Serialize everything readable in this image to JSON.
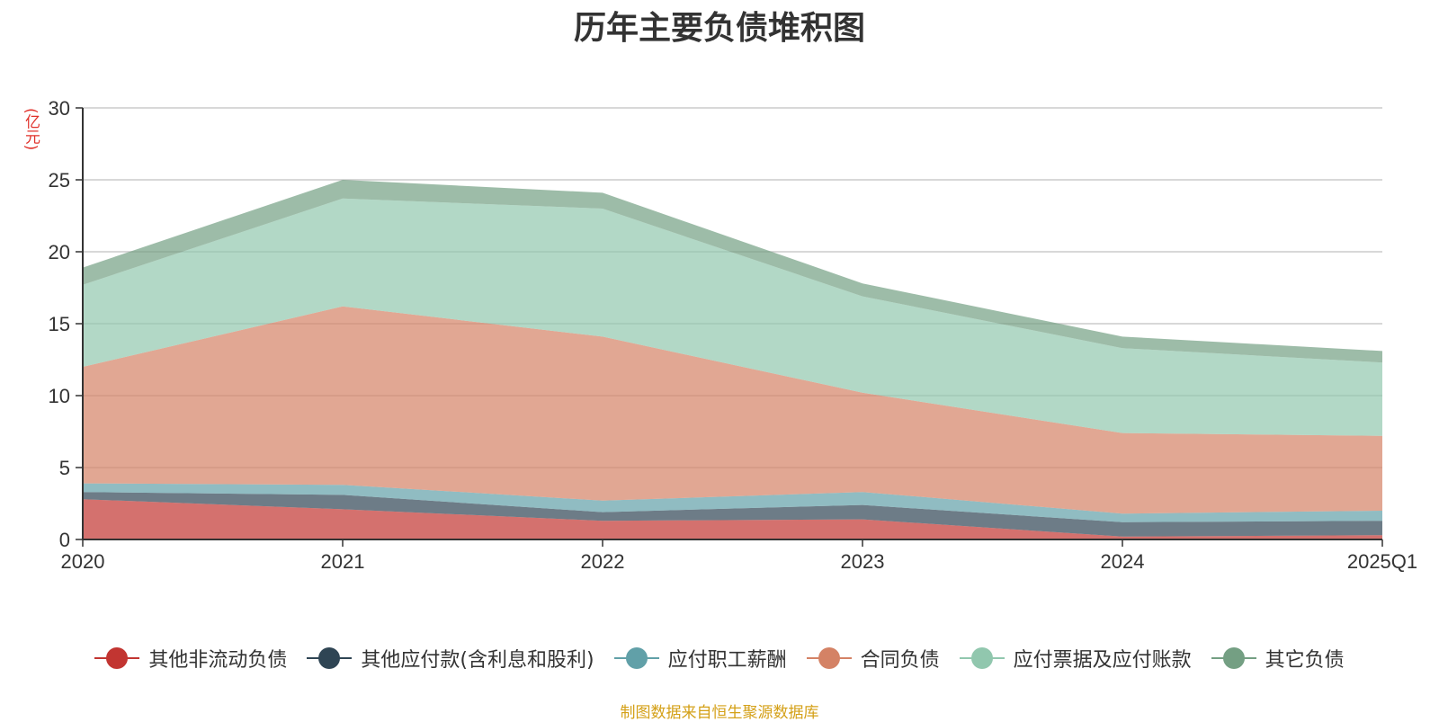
{
  "chart_data": {
    "type": "area",
    "title": "历年主要负债堆积图",
    "ylabel": "(亿元)",
    "xlabel": "",
    "stacked": true,
    "categories": [
      "2020",
      "2021",
      "2022",
      "2023",
      "2024",
      "2025Q1"
    ],
    "ylim": [
      0,
      30
    ],
    "yticks": [
      0,
      5,
      10,
      15,
      20,
      25,
      30
    ],
    "grid": true,
    "legend_position": "bottom",
    "series": [
      {
        "name": "其他非流动负债",
        "color": "#c23531",
        "values": [
          2.8,
          2.1,
          1.3,
          1.4,
          0.2,
          0.3
        ]
      },
      {
        "name": "其他应付款(含利息和股利)",
        "color": "#2f4554",
        "values": [
          0.5,
          1.0,
          0.6,
          1.0,
          1.0,
          1.0
        ]
      },
      {
        "name": "应付职工薪酬",
        "color": "#61a0a8",
        "values": [
          0.6,
          0.7,
          0.8,
          0.9,
          0.6,
          0.7
        ]
      },
      {
        "name": "合同负债",
        "color": "#d48265",
        "values": [
          8.1,
          12.4,
          11.4,
          6.9,
          5.6,
          5.2
        ]
      },
      {
        "name": "应付票据及应付账款",
        "color": "#91c7ae",
        "values": [
          5.7,
          7.5,
          8.9,
          6.7,
          5.9,
          5.1
        ]
      },
      {
        "name": "其它负债",
        "color": "#749f83",
        "values": [
          1.2,
          1.3,
          1.1,
          0.9,
          0.8,
          0.8
        ]
      }
    ]
  },
  "footer": {
    "source": "制图数据来自恒生聚源数据库"
  }
}
